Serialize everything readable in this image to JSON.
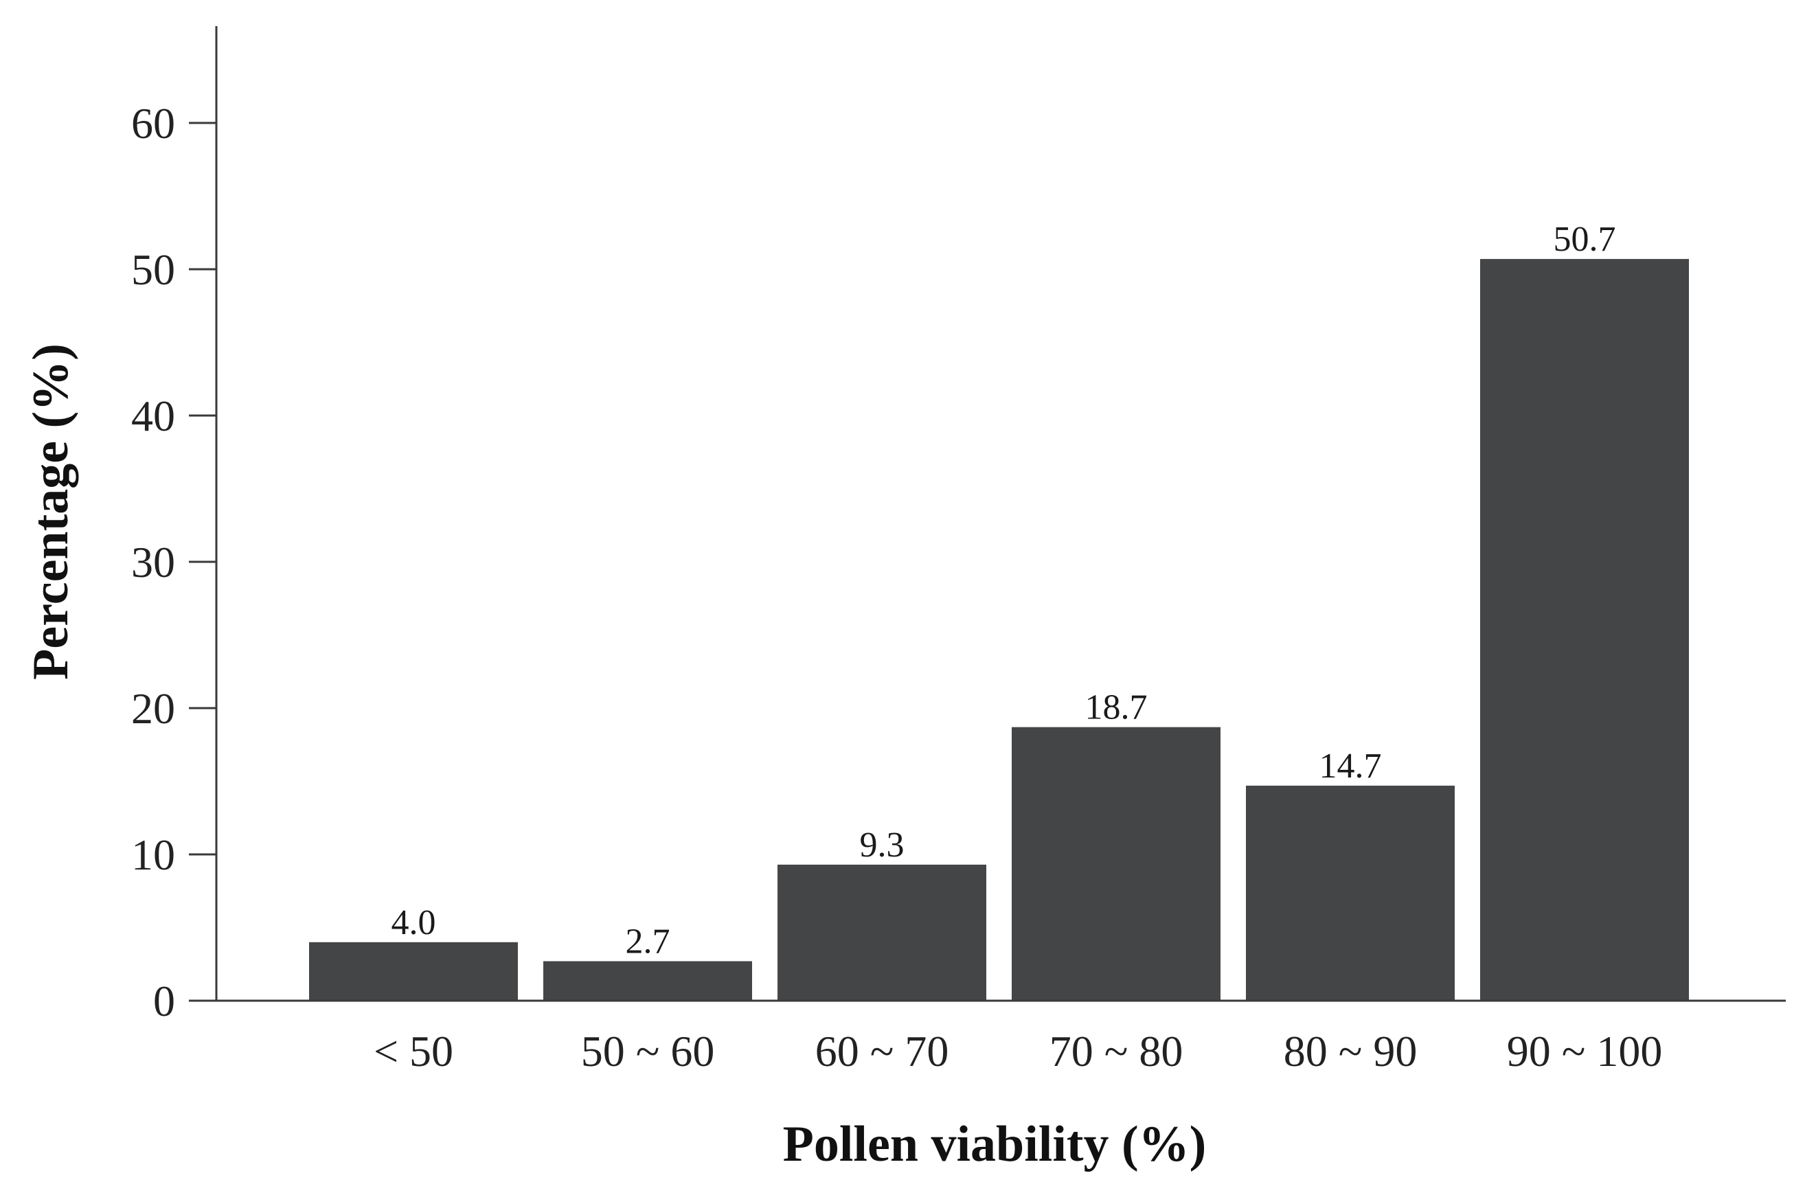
{
  "chart_data": {
    "type": "bar",
    "categories": [
      "< 50",
      "50 ~ 60",
      "60 ~ 70",
      "70 ~ 80",
      "80 ~ 90",
      "90 ~ 100"
    ],
    "values": [
      4.0,
      2.7,
      9.3,
      18.7,
      14.7,
      50.7
    ],
    "data_labels": [
      "4.0",
      "2.7",
      "9.3",
      "18.7",
      "14.7",
      "50.7"
    ],
    "xlabel": "Pollen viability (%)",
    "ylabel": "Percentage (%)",
    "ylim": [
      0,
      66
    ],
    "yticks": [
      0,
      10,
      20,
      30,
      40,
      50,
      60
    ],
    "grid": false,
    "legend": "none",
    "colors": {
      "bar": "#444547",
      "axis": "#3a3a3a",
      "text": "#222222"
    }
  }
}
